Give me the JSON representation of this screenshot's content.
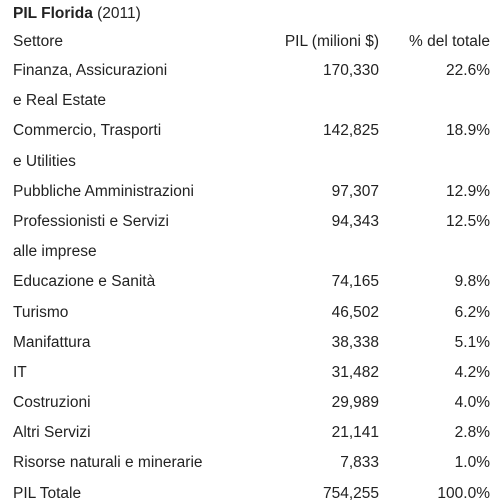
{
  "title": {
    "bold": "PIL Florida",
    "rest": " (2011)"
  },
  "headers": {
    "sector": "Settore",
    "pil": "PIL (milioni $)",
    "pct": "% del totale"
  },
  "rows": [
    {
      "sector_lines": [
        "Finanza, Assicurazioni",
        "e Real Estate"
      ],
      "pil": "170,330",
      "pct": "22.6%"
    },
    {
      "sector_lines": [
        "Commercio, Trasporti",
        "e Utilities"
      ],
      "pil": "142,825",
      "pct": "18.9%"
    },
    {
      "sector_lines": [
        "Pubbliche Amministrazioni"
      ],
      "pil": "97,307",
      "pct": "12.9%"
    },
    {
      "sector_lines": [
        "Professionisti e Servizi",
        "alle imprese"
      ],
      "pil": "94,343",
      "pct": "12.5%"
    },
    {
      "sector_lines": [
        "Educazione e Sanità"
      ],
      "pil": "74,165",
      "pct": "9.8%"
    },
    {
      "sector_lines": [
        "Turismo"
      ],
      "pil": "46,502",
      "pct": "6.2%"
    },
    {
      "sector_lines": [
        "Manifattura"
      ],
      "pil": "38,338",
      "pct": "5.1%"
    },
    {
      "sector_lines": [
        "IT"
      ],
      "pil": "31,482",
      "pct": "4.2%"
    },
    {
      "sector_lines": [
        "Costruzioni"
      ],
      "pil": "29,989",
      "pct": "4.0%"
    },
    {
      "sector_lines": [
        "Altri Servizi"
      ],
      "pil": "21,141",
      "pct": "2.8%"
    },
    {
      "sector_lines": [
        "Risorse naturali e minerarie"
      ],
      "pil": "7,833",
      "pct": "1.0%"
    },
    {
      "sector_lines": [
        "PIL Totale"
      ],
      "pil": "754,255",
      "pct": "100.0%"
    }
  ]
}
